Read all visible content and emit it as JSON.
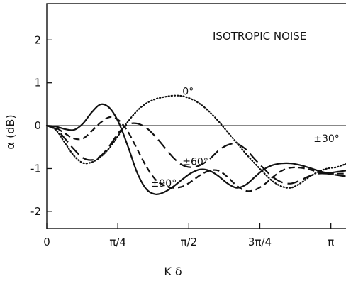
{
  "chart_data": {
    "type": "line",
    "title": "ISOTROPIC NOISE",
    "xlabel": "K δ",
    "ylabel": "α (dB)",
    "xlim": [
      0,
      3.45
    ],
    "ylim": [
      -2.4,
      2.85
    ],
    "grid": false,
    "legend": "none",
    "x_ticks": [
      {
        "value": 0,
        "label": "0"
      },
      {
        "value": 0.7854,
        "label": "π/4"
      },
      {
        "value": 1.5708,
        "label": "π/2"
      },
      {
        "value": 2.3562,
        "label": "3π/4"
      },
      {
        "value": 3.1416,
        "label": "π"
      }
    ],
    "y_ticks": [
      {
        "value": 2,
        "label": "2"
      },
      {
        "value": 1,
        "label": "1"
      },
      {
        "value": 0,
        "label": "0"
      },
      {
        "value": -1,
        "label": "-1"
      },
      {
        "value": -2,
        "label": "-2"
      }
    ],
    "series": [
      {
        "name": "0°",
        "style": "dotted",
        "label_at": [
          1.5,
          0.72
        ],
        "x": [
          0,
          0.1,
          0.2,
          0.3,
          0.4,
          0.5,
          0.6,
          0.7,
          0.8,
          0.9,
          1.0,
          1.1,
          1.2,
          1.3,
          1.4,
          1.5,
          1.6,
          1.7,
          1.8,
          1.9,
          2.0,
          2.1,
          2.2,
          2.3,
          2.4,
          2.5,
          2.6,
          2.7,
          2.8,
          2.9,
          3.0,
          3.1,
          3.2,
          3.3,
          3.45
        ],
        "y": [
          0,
          -0.1,
          -0.4,
          -0.7,
          -0.87,
          -0.85,
          -0.72,
          -0.5,
          -0.2,
          0.1,
          0.35,
          0.52,
          0.62,
          0.67,
          0.7,
          0.69,
          0.62,
          0.5,
          0.32,
          0.1,
          -0.15,
          -0.4,
          -0.65,
          -0.88,
          -1.1,
          -1.3,
          -1.42,
          -1.45,
          -1.35,
          -1.2,
          -1.08,
          -1.0,
          -0.97,
          -0.9,
          -0.8
        ]
      },
      {
        "name": "±30°",
        "style": "long-dash",
        "label_at": [
          2.95,
          -0.38
        ],
        "x": [
          0,
          0.1,
          0.2,
          0.3,
          0.4,
          0.5,
          0.6,
          0.7,
          0.8,
          0.9,
          1.0,
          1.1,
          1.2,
          1.3,
          1.4,
          1.5,
          1.6,
          1.7,
          1.8,
          1.9,
          2.0,
          2.1,
          2.2,
          2.3,
          2.4,
          2.5,
          2.6,
          2.7,
          2.8,
          2.9,
          3.0,
          3.1,
          3.2,
          3.3,
          3.45
        ],
        "y": [
          0,
          -0.08,
          -0.3,
          -0.55,
          -0.75,
          -0.8,
          -0.7,
          -0.45,
          -0.15,
          0.03,
          0.05,
          -0.05,
          -0.25,
          -0.5,
          -0.75,
          -0.92,
          -0.97,
          -0.92,
          -0.78,
          -0.58,
          -0.45,
          -0.42,
          -0.55,
          -0.78,
          -1.0,
          -1.2,
          -1.32,
          -1.35,
          -1.28,
          -1.18,
          -1.12,
          -1.12,
          -1.15,
          -1.18,
          -1.2
        ]
      },
      {
        "name": "±60°",
        "style": "dash",
        "label_at": [
          1.5,
          -0.92
        ],
        "x": [
          0,
          0.1,
          0.2,
          0.3,
          0.4,
          0.5,
          0.6,
          0.7,
          0.8,
          0.9,
          1.0,
          1.1,
          1.2,
          1.3,
          1.4,
          1.5,
          1.6,
          1.7,
          1.8,
          1.9,
          2.0,
          2.1,
          2.2,
          2.3,
          2.4,
          2.5,
          2.6,
          2.7,
          2.8,
          2.9,
          3.0,
          3.1,
          3.2,
          3.3,
          3.45
        ],
        "y": [
          0,
          -0.05,
          -0.18,
          -0.3,
          -0.3,
          -0.12,
          0.08,
          0.2,
          0.12,
          -0.15,
          -0.55,
          -0.95,
          -1.25,
          -1.4,
          -1.45,
          -1.42,
          -1.3,
          -1.15,
          -1.05,
          -1.05,
          -1.2,
          -1.4,
          -1.52,
          -1.5,
          -1.38,
          -1.2,
          -1.05,
          -0.98,
          -0.98,
          -1.02,
          -1.08,
          -1.12,
          -1.12,
          -1.12,
          -1.12
        ]
      },
      {
        "name": "±90°",
        "style": "solid",
        "label_at": [
          1.15,
          -1.42
        ],
        "x": [
          0,
          0.1,
          0.2,
          0.3,
          0.4,
          0.5,
          0.6,
          0.7,
          0.8,
          0.9,
          1.0,
          1.1,
          1.2,
          1.3,
          1.4,
          1.5,
          1.6,
          1.7,
          1.8,
          1.9,
          2.0,
          2.1,
          2.2,
          2.3,
          2.4,
          2.5,
          2.6,
          2.7,
          2.8,
          2.9,
          3.0,
          3.1,
          3.2,
          3.3,
          3.45
        ],
        "y": [
          0,
          -0.02,
          -0.08,
          -0.1,
          0.05,
          0.32,
          0.5,
          0.4,
          0.05,
          -0.5,
          -1.1,
          -1.48,
          -1.6,
          -1.55,
          -1.42,
          -1.25,
          -1.1,
          -1.02,
          -1.05,
          -1.18,
          -1.35,
          -1.45,
          -1.38,
          -1.2,
          -1.02,
          -0.92,
          -0.88,
          -0.88,
          -0.92,
          -0.98,
          -1.05,
          -1.1,
          -1.08,
          -1.05,
          -1.0
        ]
      }
    ]
  }
}
